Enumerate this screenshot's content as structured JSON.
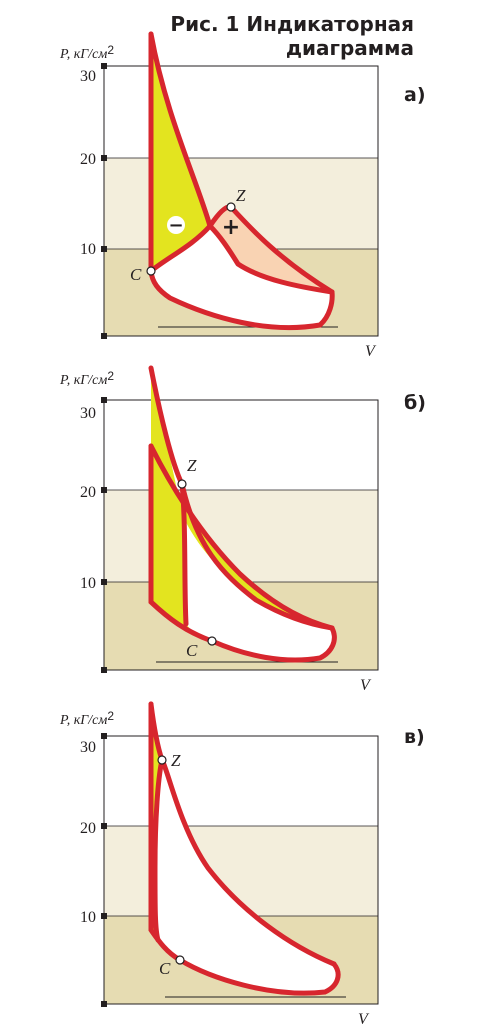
{
  "title": {
    "line1": "Рис. 1 Индикаторная",
    "line2": "диаграмма"
  },
  "colors": {
    "cycle_line": "#d7262e",
    "yellow_fill": "#e3e41f",
    "peach_fill": "#f9d3b3",
    "band_low": "#e6dcb2",
    "band_mid": "#f3eedc"
  },
  "panels": [
    {
      "letter": "а)",
      "y_axis_label": "P, кГ/см",
      "y_axis_exp": "2",
      "x_axis_label": "V",
      "y_ticks": [
        "30",
        "20",
        "10"
      ],
      "point_c": "C",
      "point_z": "Z",
      "minus_symbol": "−",
      "plus_symbol": "+"
    },
    {
      "letter": "б)",
      "y_axis_label": "P, кГ/см",
      "y_axis_exp": "2",
      "x_axis_label": "V",
      "y_ticks": [
        "30",
        "20",
        "10"
      ],
      "point_c": "C",
      "point_z": "Z"
    },
    {
      "letter": "в)",
      "y_axis_label": "P, кГ/см",
      "y_axis_exp": "2",
      "x_axis_label": "V",
      "y_ticks": [
        "30",
        "20",
        "10"
      ],
      "point_c": "C",
      "point_z": "Z"
    }
  ]
}
